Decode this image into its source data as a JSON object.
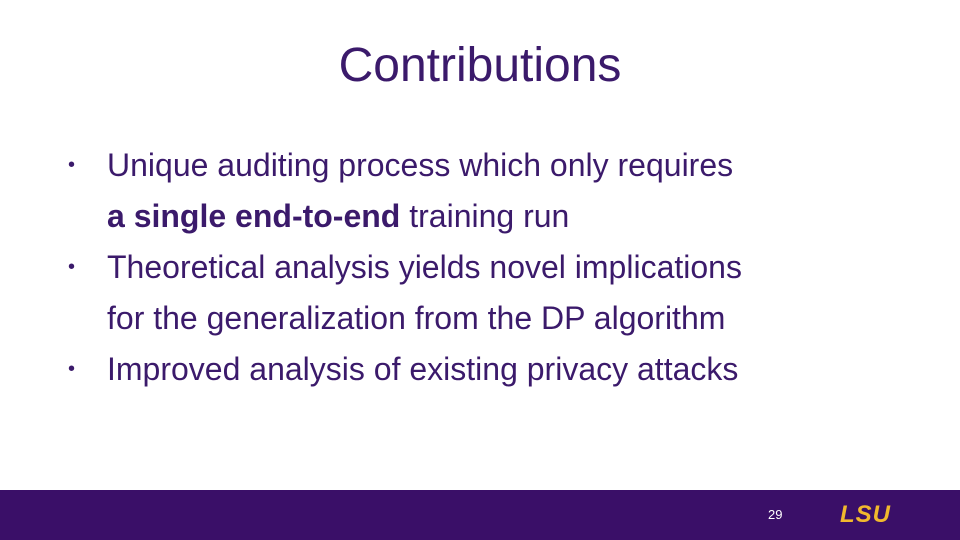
{
  "slide": {
    "title": "Contributions",
    "bullets": [
      {
        "lines": [
          [
            {
              "text": "Unique auditing process which only requires",
              "bold": false
            }
          ],
          [
            {
              "text": "a single end-to-end",
              "bold": true
            },
            {
              "text": " training run",
              "bold": false
            }
          ]
        ]
      },
      {
        "lines": [
          [
            {
              "text": "Theoretical analysis yields novel implications",
              "bold": false
            }
          ],
          [
            {
              "text": "for the generalization from the DP algorithm",
              "bold": false
            }
          ]
        ]
      },
      {
        "lines": [
          [
            {
              "text": "Improved analysis of existing privacy attacks",
              "bold": false
            }
          ]
        ]
      }
    ],
    "page_number": "29",
    "logo": "LSU"
  }
}
